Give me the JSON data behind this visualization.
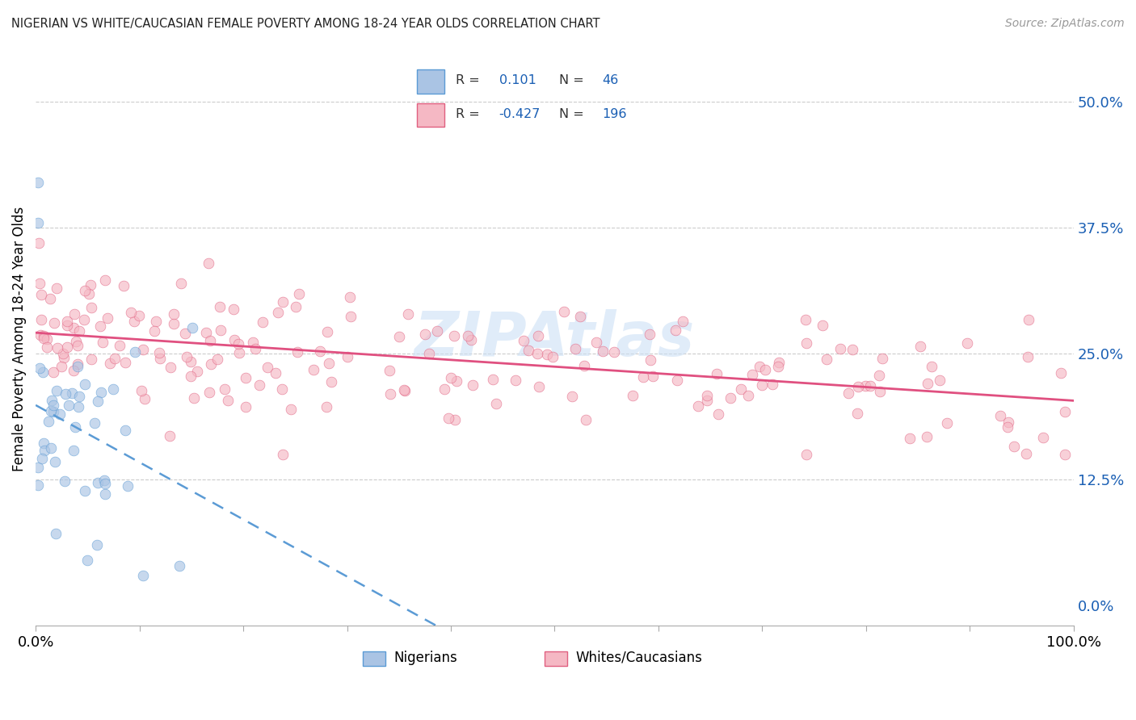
{
  "title": "NIGERIAN VS WHITE/CAUCASIAN FEMALE POVERTY AMONG 18-24 YEAR OLDS CORRELATION CHART",
  "source": "Source: ZipAtlas.com",
  "ylabel": "Female Poverty Among 18-24 Year Olds",
  "xlim": [
    0,
    100
  ],
  "ylim": [
    -2,
    55
  ],
  "xtick_values": [
    0,
    10,
    20,
    30,
    40,
    50,
    60,
    70,
    80,
    90,
    100
  ],
  "xtick_labels_sparse": {
    "0": "0.0%",
    "100": "100.0%"
  },
  "ytick_values_right": [
    0,
    12.5,
    25,
    37.5,
    50
  ],
  "ytick_labels_right": [
    "0.0%",
    "12.5%",
    "25.0%",
    "37.5%",
    "50.0%"
  ],
  "gridline_values": [
    12.5,
    25,
    37.5,
    50
  ],
  "nigerian_color": "#aac4e4",
  "nigerian_edge": "#5b9bd5",
  "white_color": "#f5b8c4",
  "white_edge": "#e06080",
  "trendline_nigerian_color": "#5b9bd5",
  "trendline_nigerian_style": "dashed",
  "trendline_white_color": "#e05080",
  "trendline_white_style": "solid",
  "legend_nig_fill": "#aac4e4",
  "legend_nig_edge": "#5b9bd5",
  "legend_wht_fill": "#f5b8c4",
  "legend_wht_edge": "#e06080",
  "watermark": "ZIPAtlas",
  "watermark_color": "#cce0f5",
  "title_color": "#222222",
  "source_color": "#999999",
  "right_tick_color": "#1a5fb4",
  "legend_text_color": "#1a5fb4"
}
